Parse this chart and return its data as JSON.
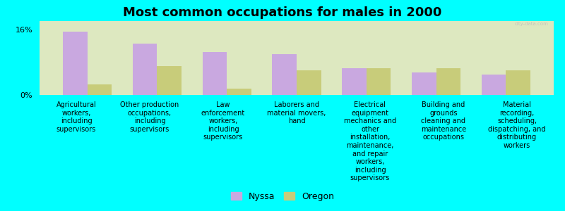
{
  "title": "Most common occupations for males in 2000",
  "background_color": "#00FFFF",
  "plot_bg_color": "#dde8c0",
  "bar_width": 0.35,
  "categories": [
    "Agricultural\nworkers,\nincluding\nsupervisors",
    "Other production\noccupations,\nincluding\nsupervisors",
    "Law\nenforcement\nworkers,\nincluding\nsupervisors",
    "Laborers and\nmaterial movers,\nhand",
    "Electrical\nequipment\nmechanics and\nother\ninstallation,\nmaintenance,\nand repair\nworkers,\nincluding\nsupervisors",
    "Building and\ngrounds\ncleaning and\nmaintenance\noccupations",
    "Material\nrecording,\nscheduling,\ndispatching, and\ndistributing\nworkers"
  ],
  "nyssa_values": [
    15.5,
    12.5,
    10.5,
    10.0,
    6.5,
    5.5,
    5.0
  ],
  "oregon_values": [
    2.5,
    7.0,
    1.5,
    6.0,
    6.5,
    6.5,
    6.0
  ],
  "nyssa_color": "#c9a8e0",
  "oregon_color": "#c8cc7a",
  "ylim": [
    0,
    18
  ],
  "yticks": [
    0,
    16
  ],
  "ytick_labels": [
    "0%",
    "16%"
  ],
  "legend_labels": [
    "Nyssa",
    "Oregon"
  ],
  "title_fontsize": 13,
  "label_fontsize": 7,
  "watermark": "city-data.com"
}
